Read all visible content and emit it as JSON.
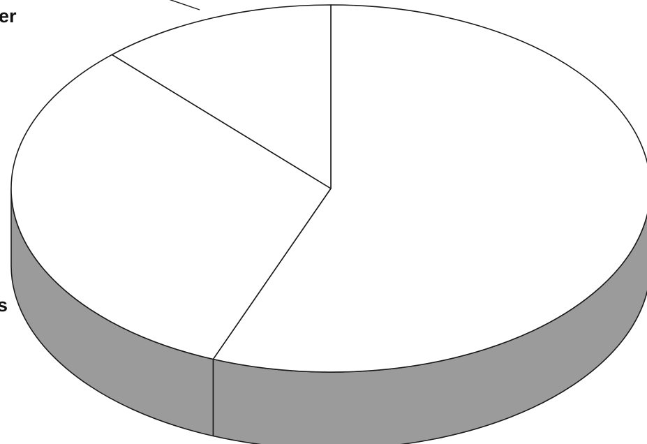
{
  "chart_data": {
    "type": "pie",
    "style": "3d",
    "title": "",
    "start_angle_deg": 0,
    "direction": "clockwise",
    "slices": [
      {
        "label": "",
        "value": 56
      },
      {
        "label": "s",
        "value": 32
      },
      {
        "label": "er",
        "value": 12
      }
    ],
    "colors": {
      "top": "#ffffff",
      "side": "#9b9b9b",
      "stroke": "#1a1a1a"
    }
  }
}
